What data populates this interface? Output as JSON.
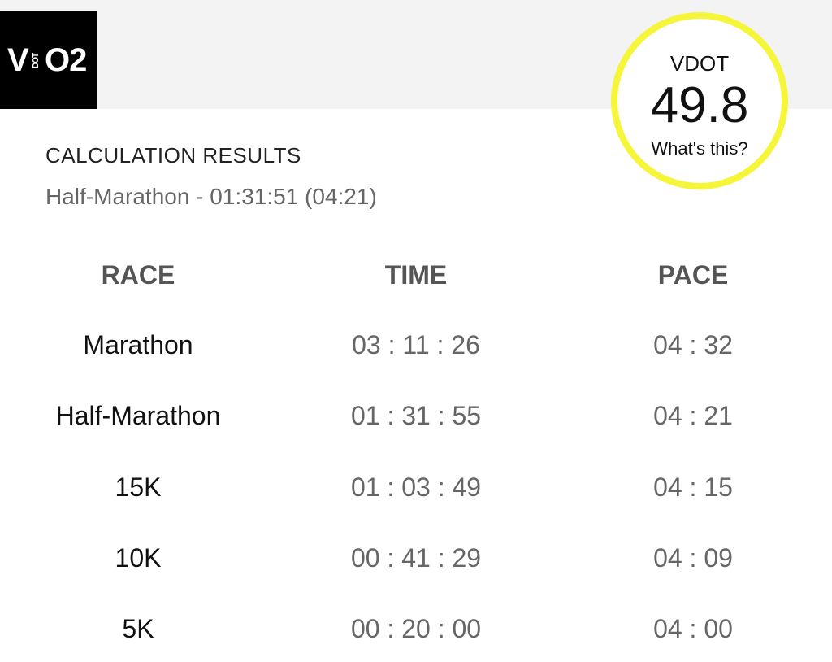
{
  "logo": {
    "v": "V",
    "dot": "DOT",
    "o2": "O2"
  },
  "vdot": {
    "label": "VDOT",
    "value": "49.8",
    "help": "What's this?"
  },
  "results": {
    "heading": "CALCULATION RESULTS",
    "summary": "Half-Marathon - 01:31:51 (04:21)"
  },
  "table": {
    "headers": {
      "race": "RACE",
      "time": "TIME",
      "pace": "PACE"
    },
    "rows": [
      {
        "race": "Marathon",
        "time": "03 : 11 : 26",
        "pace": "04 : 32"
      },
      {
        "race": "Half-Marathon",
        "time": "01 : 31 : 55",
        "pace": "04 : 21"
      },
      {
        "race": "15K",
        "time": "01 : 03 : 49",
        "pace": "04 : 15"
      },
      {
        "race": "10K",
        "time": "00 : 41 : 29",
        "pace": "04 : 09"
      },
      {
        "race": "5K",
        "time": "00 : 20 : 00",
        "pace": "04 : 00"
      }
    ]
  },
  "colors": {
    "badge_ring": "#f5f53a",
    "logo_bg": "#000000",
    "header_band": "#f3f3f3",
    "muted_text": "#666666"
  }
}
